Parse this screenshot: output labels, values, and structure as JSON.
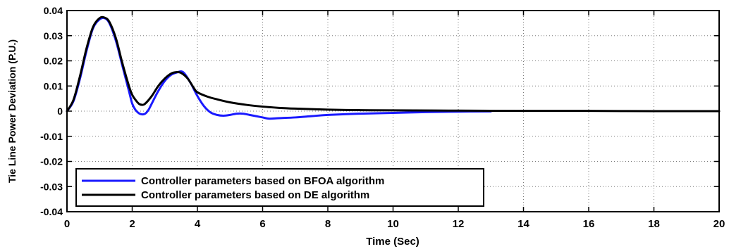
{
  "chart_data": {
    "type": "line",
    "title": "",
    "xlabel": "Time (Sec)",
    "ylabel": "Tie Line Power Deviation (P.U.)",
    "xlim": [
      0,
      20
    ],
    "ylim": [
      -0.04,
      0.04
    ],
    "xticks": [
      0,
      2,
      4,
      6,
      8,
      10,
      12,
      14,
      16,
      18,
      20
    ],
    "yticks": [
      -0.04,
      -0.03,
      -0.02,
      -0.01,
      0,
      0.01,
      0.02,
      0.03,
      0.04
    ],
    "xtick_labels": [
      "0",
      "2",
      "4",
      "6",
      "8",
      "10",
      "12",
      "14",
      "16",
      "18",
      "20"
    ],
    "ytick_labels": [
      "-0.04",
      "-0.03",
      "-0.02",
      "-0.01",
      "0",
      "0.01",
      "0.02",
      "0.03",
      "0.04"
    ],
    "grid": true,
    "legend_position": "lower-left",
    "series": [
      {
        "name": "Controller parameters based on BFOA algorithm",
        "color": "#1a1aff",
        "x": [
          0,
          0.2,
          0.4,
          0.6,
          0.8,
          1.0,
          1.15,
          1.3,
          1.5,
          1.7,
          1.9,
          2.0,
          2.1,
          2.2,
          2.3,
          2.4,
          2.5,
          2.6,
          2.8,
          3.0,
          3.2,
          3.4,
          3.5,
          3.6,
          3.8,
          4.0,
          4.2,
          4.4,
          4.6,
          4.8,
          5.0,
          5.2,
          5.4,
          5.6,
          5.8,
          6.0,
          6.2,
          6.5,
          7.0,
          7.5,
          8.0,
          9.0,
          10.0,
          11.0,
          12.0,
          13.0
        ],
        "y": [
          0,
          0.004,
          0.013,
          0.024,
          0.033,
          0.0365,
          0.037,
          0.035,
          0.028,
          0.018,
          0.008,
          0.003,
          0.0005,
          -0.0008,
          -0.0013,
          -0.001,
          0.0005,
          0.003,
          0.008,
          0.012,
          0.0145,
          0.0155,
          0.0158,
          0.015,
          0.011,
          0.006,
          0.002,
          -0.0005,
          -0.0015,
          -0.0018,
          -0.0015,
          -0.001,
          -0.001,
          -0.0015,
          -0.002,
          -0.0025,
          -0.003,
          -0.0028,
          -0.0025,
          -0.002,
          -0.0015,
          -0.001,
          -0.0007,
          -0.0004,
          -0.0002,
          -0.0001
        ]
      },
      {
        "name": "Controller parameters based on DE algorithm",
        "color": "#000000",
        "x": [
          0,
          0.2,
          0.4,
          0.6,
          0.8,
          1.0,
          1.15,
          1.3,
          1.5,
          1.7,
          1.9,
          2.0,
          2.1,
          2.2,
          2.3,
          2.4,
          2.6,
          2.8,
          3.0,
          3.2,
          3.35,
          3.5,
          3.7,
          3.9,
          4.0,
          4.3,
          4.6,
          5.0,
          5.5,
          6.0,
          6.5,
          7.0,
          8.0,
          9.0,
          10.0,
          12.0,
          14.0,
          16.0,
          18.0,
          20.0
        ],
        "y": [
          0,
          0.0045,
          0.014,
          0.025,
          0.0335,
          0.037,
          0.0372,
          0.0355,
          0.029,
          0.019,
          0.01,
          0.0065,
          0.0045,
          0.003,
          0.0025,
          0.003,
          0.006,
          0.01,
          0.013,
          0.015,
          0.0155,
          0.0152,
          0.013,
          0.009,
          0.0075,
          0.0058,
          0.0047,
          0.0035,
          0.0025,
          0.0018,
          0.0013,
          0.001,
          0.0006,
          0.0004,
          0.0003,
          0.0002,
          0.0001,
          0.0001,
          0.0,
          0.0
        ]
      }
    ]
  }
}
